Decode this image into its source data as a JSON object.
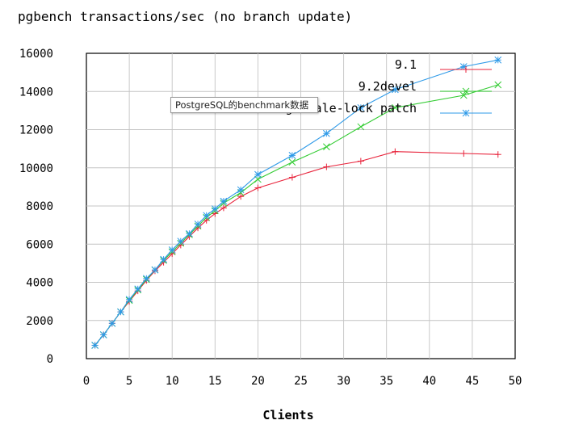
{
  "tooltip_text": "PostgreSQL的benchmark数据",
  "chart_data": {
    "type": "line",
    "title": "pgbench transactions/sec (no branch update)",
    "xlabel": "Clients",
    "ylabel": "",
    "xlim": [
      0,
      50
    ],
    "ylim": [
      0,
      16000
    ],
    "x_ticks": [
      0,
      5,
      10,
      15,
      20,
      25,
      30,
      35,
      40,
      45,
      50
    ],
    "y_ticks": [
      0,
      2000,
      4000,
      6000,
      8000,
      10000,
      12000,
      14000,
      16000
    ],
    "grid": true,
    "legend_position": "top-right",
    "series": [
      {
        "name": "9.1",
        "color": "#e8223a",
        "marker": "+",
        "x": [
          1,
          2,
          3,
          4,
          5,
          6,
          7,
          8,
          9,
          10,
          11,
          12,
          13,
          14,
          15,
          16,
          18,
          20,
          24,
          28,
          32,
          36,
          44,
          48
        ],
        "y": [
          700,
          1250,
          1850,
          2450,
          3000,
          3550,
          4100,
          4600,
          5050,
          5500,
          5950,
          6400,
          6850,
          7250,
          7600,
          7900,
          8500,
          8950,
          9500,
          10050,
          10350,
          10850,
          10750,
          10700
        ]
      },
      {
        "name": "9.2devel",
        "color": "#33cc33",
        "marker": "x",
        "x": [
          1,
          2,
          3,
          4,
          5,
          6,
          7,
          8,
          9,
          10,
          11,
          12,
          13,
          14,
          15,
          16,
          18,
          20,
          24,
          28,
          32,
          36,
          44,
          48
        ],
        "y": [
          700,
          1250,
          1850,
          2450,
          3050,
          3600,
          4150,
          4650,
          5150,
          5600,
          6050,
          6500,
          6950,
          7400,
          7750,
          8150,
          8700,
          9400,
          10300,
          11100,
          12150,
          13150,
          13800,
          14350
        ]
      },
      {
        "name": "xlog-scale-lock patch",
        "color": "#2e9ae8",
        "marker": "*",
        "x": [
          1,
          2,
          3,
          4,
          5,
          6,
          7,
          8,
          9,
          10,
          11,
          12,
          13,
          14,
          15,
          16,
          18,
          20,
          24,
          28,
          32,
          36,
          44,
          48
        ],
        "y": [
          700,
          1250,
          1850,
          2450,
          3100,
          3650,
          4200,
          4650,
          5200,
          5700,
          6150,
          6550,
          7050,
          7500,
          7850,
          8250,
          8850,
          9650,
          10650,
          11800,
          13150,
          14100,
          15300,
          15650
        ]
      }
    ]
  }
}
